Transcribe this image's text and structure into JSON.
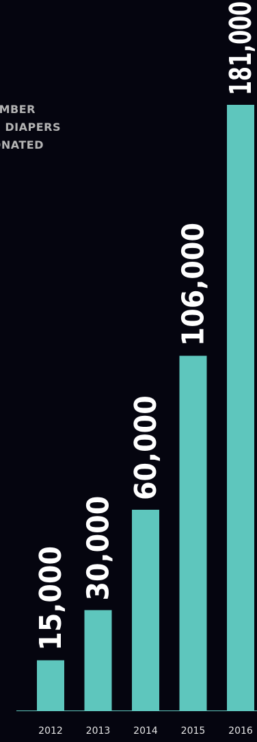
{
  "chart_data": {
    "type": "bar",
    "title_lines": [
      "NUMBER",
      "OF DIAPERS",
      "DONATED"
    ],
    "categories": [
      "2012",
      "2013",
      "2014",
      "2015",
      "2016"
    ],
    "values": [
      15000,
      30000,
      60000,
      106000,
      181000
    ],
    "value_labels": [
      "15,000",
      "30,000",
      "60,000",
      "106,000",
      "181,000"
    ],
    "ylim": [
      0,
      181000
    ],
    "grid": false,
    "legend": "none",
    "colors": {
      "background": "#05050f",
      "bar": "#5ec6bd",
      "title": "#b4b4b4",
      "value_label": "#ffffff",
      "tick_label": "#e6e6e6",
      "axis": "#5ec6bd"
    }
  }
}
